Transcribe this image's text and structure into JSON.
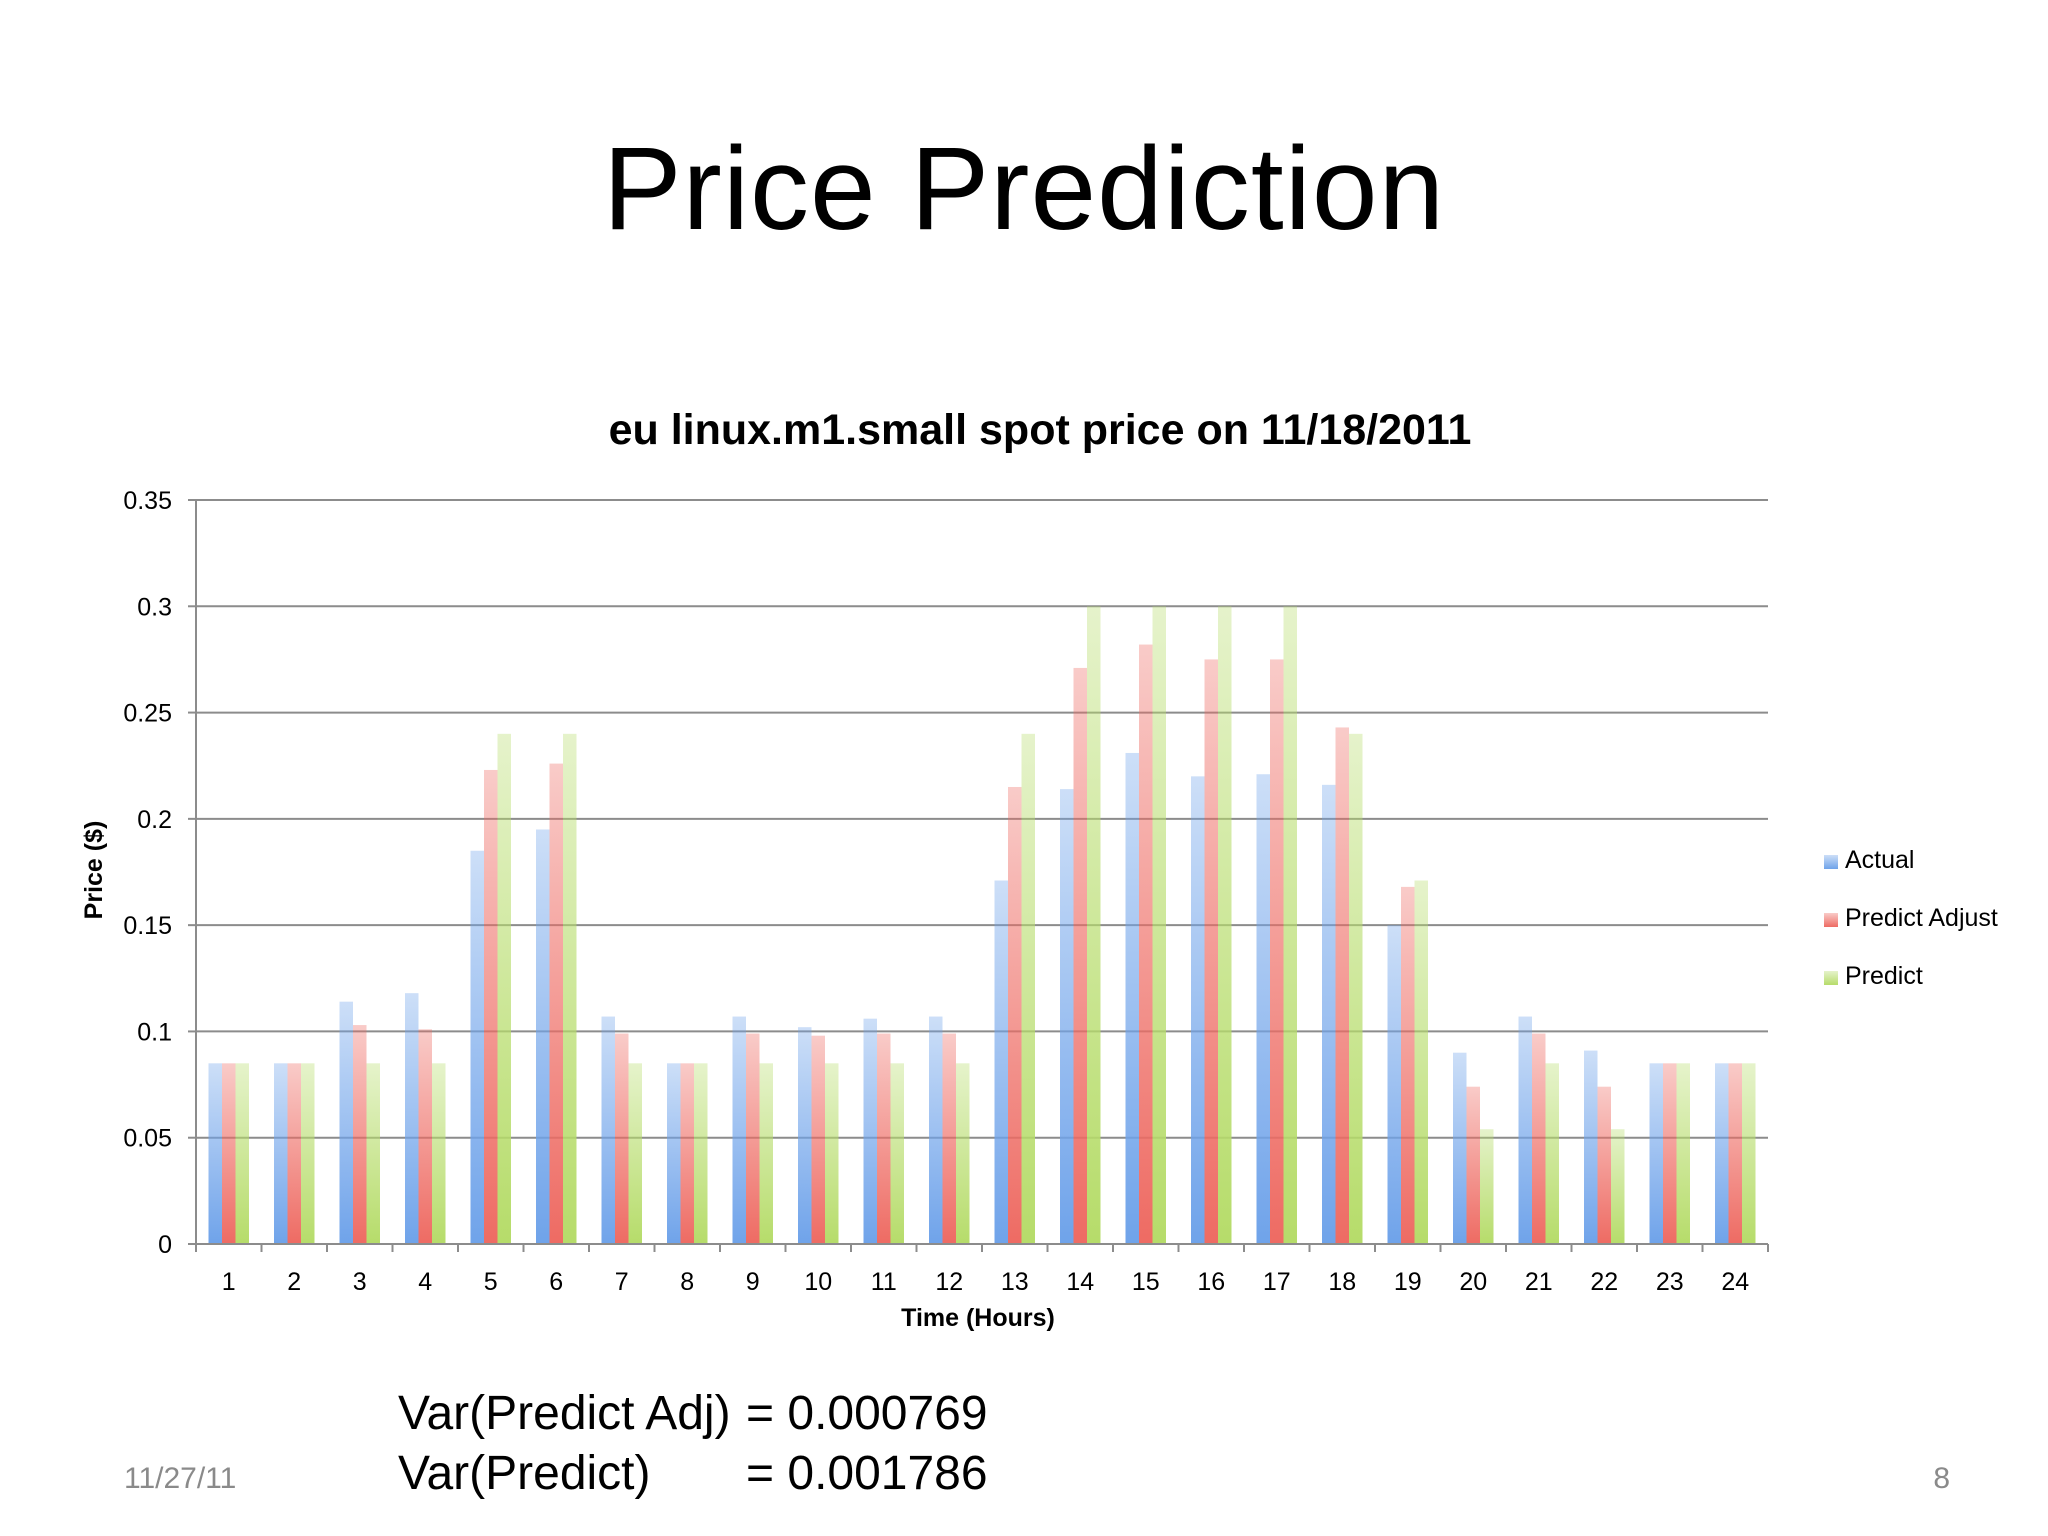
{
  "slide": {
    "title": "Price Prediction",
    "date": "11/27/11",
    "page_number": "8"
  },
  "variance": [
    {
      "label": "Var(Predict Adj)",
      "value": "= 0.000769"
    },
    {
      "label": "Var(Predict)",
      "value": "= 0.001786"
    }
  ],
  "chart_data": {
    "type": "bar",
    "title": "eu linux.m1.small spot price on 11/18/2011",
    "xlabel": "Time (Hours)",
    "ylabel": "Price ($)",
    "ylim": [
      0,
      0.35
    ],
    "yticks": [
      "0",
      "0.05",
      "0.1",
      "0.15",
      "0.2",
      "0.25",
      "0.3",
      "0.35"
    ],
    "grid": "horizontal",
    "legend": "right",
    "categories": [
      "1",
      "2",
      "3",
      "4",
      "5",
      "6",
      "7",
      "8",
      "9",
      "10",
      "11",
      "12",
      "13",
      "14",
      "15",
      "16",
      "17",
      "18",
      "19",
      "20",
      "21",
      "22",
      "23",
      "24"
    ],
    "series": [
      {
        "name": "Actual",
        "color": "#6fa3ea",
        "values": [
          0.085,
          0.085,
          0.114,
          0.118,
          0.185,
          0.195,
          0.107,
          0.085,
          0.107,
          0.102,
          0.106,
          0.107,
          0.171,
          0.214,
          0.231,
          0.22,
          0.221,
          0.216,
          0.15,
          0.09,
          0.107,
          0.091,
          0.085,
          0.085
        ]
      },
      {
        "name": "Predict Adjust",
        "color": "#ee6b63",
        "values": [
          0.085,
          0.085,
          0.103,
          0.101,
          0.223,
          0.226,
          0.099,
          0.085,
          0.099,
          0.098,
          0.099,
          0.099,
          0.215,
          0.271,
          0.282,
          0.275,
          0.275,
          0.243,
          0.168,
          0.074,
          0.099,
          0.074,
          0.085,
          0.085
        ]
      },
      {
        "name": "Predict",
        "color": "#b6dc6a",
        "values": [
          0.085,
          0.085,
          0.085,
          0.085,
          0.24,
          0.24,
          0.085,
          0.085,
          0.085,
          0.085,
          0.085,
          0.085,
          0.24,
          0.3,
          0.3,
          0.3,
          0.3,
          0.24,
          0.171,
          0.054,
          0.085,
          0.054,
          0.085,
          0.085
        ]
      }
    ]
  }
}
